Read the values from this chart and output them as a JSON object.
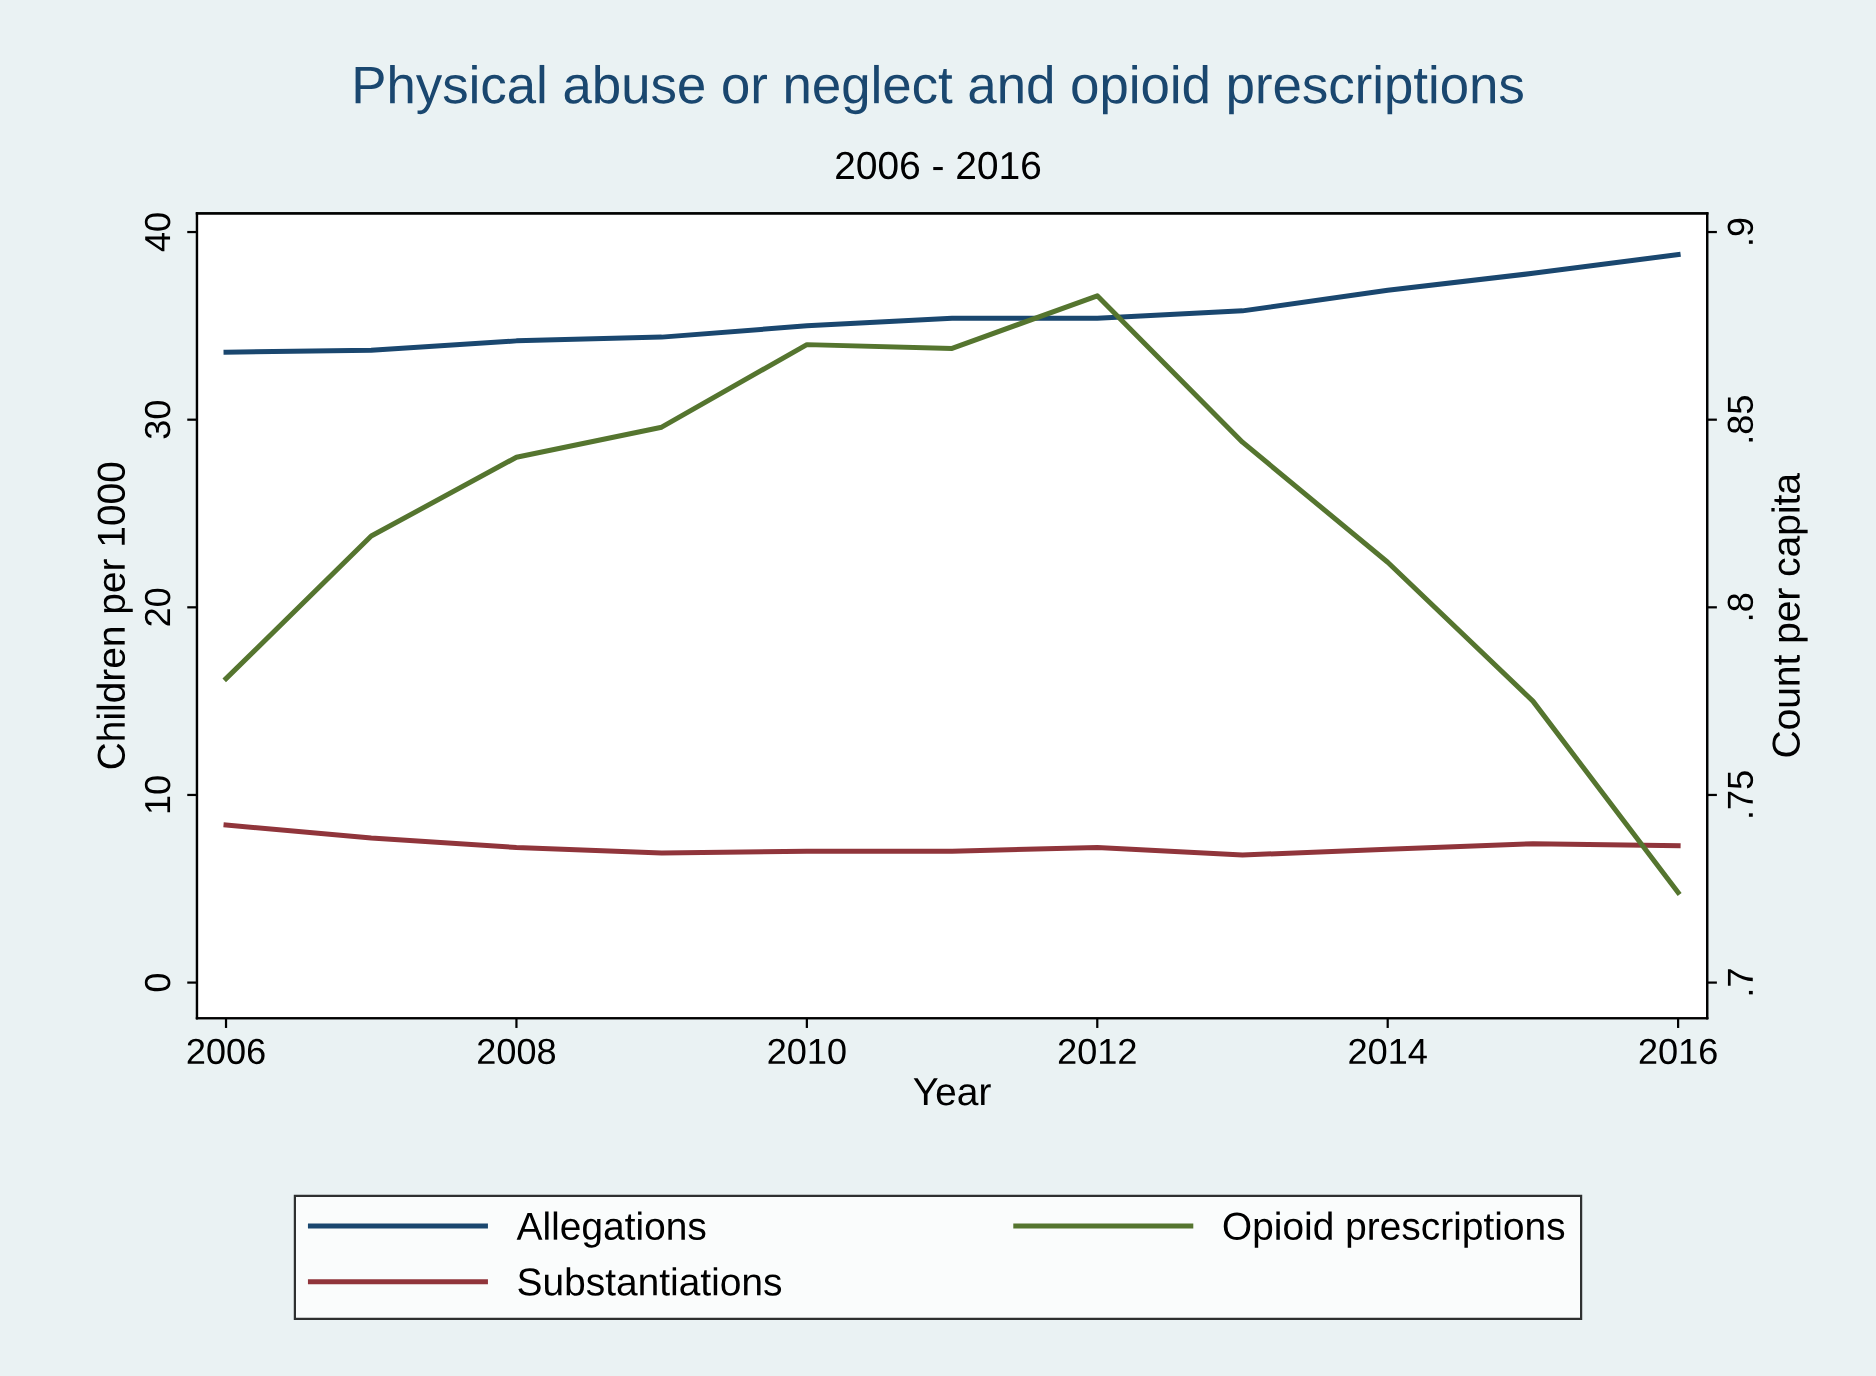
{
  "chart_data": {
    "type": "line",
    "title": "Physical abuse or neglect and opioid prescriptions",
    "subtitle": "2006 - 2016",
    "xlabel": "Year",
    "ylabel": "Children per 1000",
    "y2label": "Count per capita",
    "x": [
      2006,
      2007,
      2008,
      2009,
      2010,
      2011,
      2012,
      2013,
      2014,
      2015,
      2016
    ],
    "series": [
      {
        "name": "Allegations",
        "color": "#1a476f",
        "values": [
          33.6,
          33.7,
          34.2,
          34.4,
          35.0,
          35.4,
          35.4,
          35.8,
          36.9,
          37.8,
          38.8
        ]
      },
      {
        "name": "Substantiations",
        "color": "#90353b",
        "values": [
          8.4,
          7.7,
          7.2,
          6.9,
          7.0,
          7.0,
          7.2,
          6.8,
          7.1,
          7.4,
          7.3
        ]
      },
      {
        "name": "Opioid prescriptions",
        "color": "#55752f",
        "axis": "y2",
        "values": [
          0.781,
          0.819,
          0.84,
          0.848,
          0.87,
          0.869,
          0.883,
          0.844,
          0.812,
          0.775,
          0.724
        ]
      }
    ],
    "xlim": [
      2005.8,
      2016.2
    ],
    "xticks": [
      2006,
      2008,
      2010,
      2012,
      2014,
      2016
    ],
    "ylim": [
      -1.9,
      41
    ],
    "yticks": [
      0,
      10,
      20,
      30,
      40
    ],
    "y2lim": [
      0.6905,
      0.905
    ],
    "y2ticks": [
      {
        "value": 0.7,
        "label": ".7"
      },
      {
        "value": 0.75,
        "label": ".75"
      },
      {
        "value": 0.8,
        "label": ".8"
      },
      {
        "value": 0.85,
        "label": ".85"
      },
      {
        "value": 0.9,
        "label": ".9"
      }
    ],
    "grid": false,
    "legend": "bottom",
    "marker": "none",
    "line_style": "solid"
  }
}
